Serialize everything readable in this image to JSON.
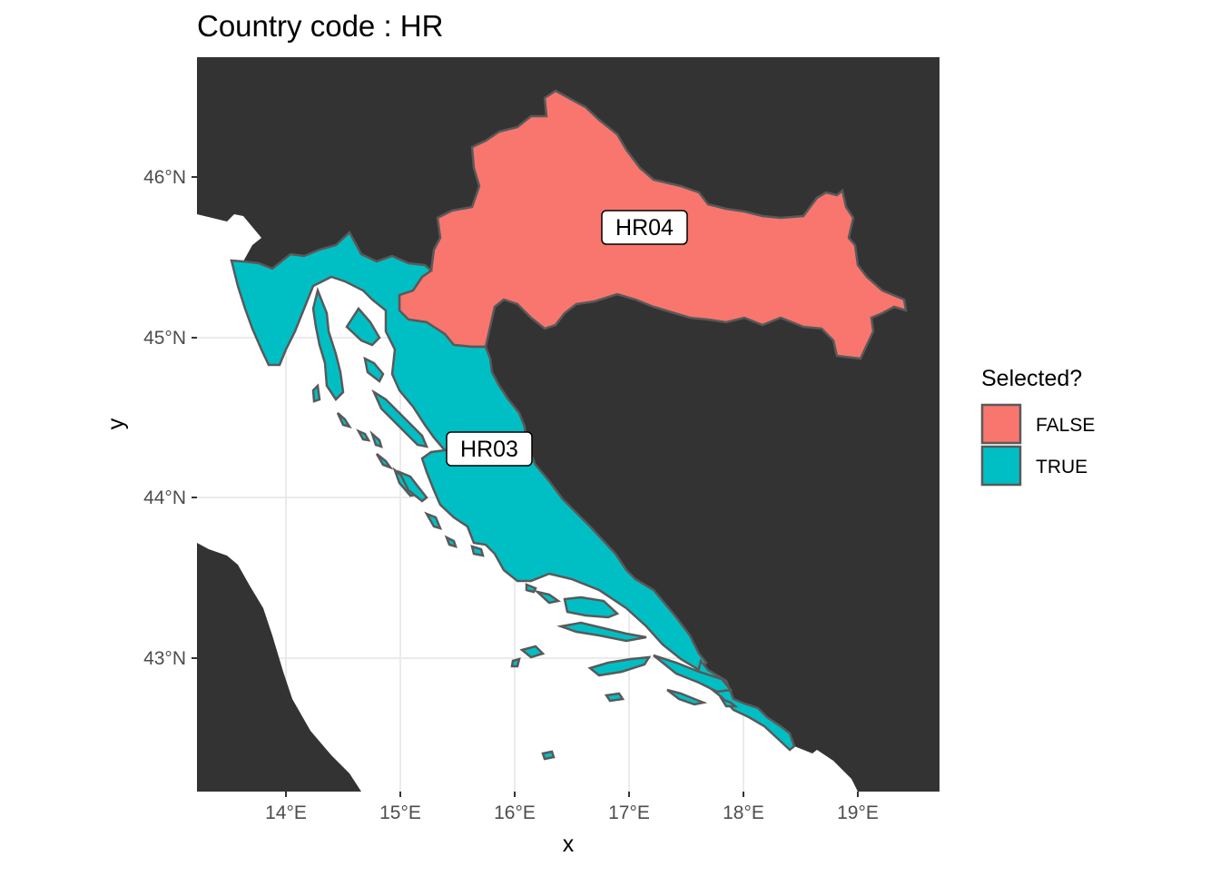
{
  "title": "Country code : HR",
  "axes": {
    "x_title": "x",
    "y_title": "y",
    "x_ticks": [
      "14°E",
      "15°E",
      "16°E",
      "17°E",
      "18°E",
      "19°E"
    ],
    "y_ticks": [
      "46°N",
      "45°N",
      "44°N",
      "43°N"
    ]
  },
  "legend": {
    "title": "Selected?",
    "items": [
      {
        "label": "FALSE",
        "color": "#F8766D"
      },
      {
        "label": "TRUE",
        "color": "#00BFC4"
      }
    ]
  },
  "regions": [
    {
      "code": "HR04",
      "selected": "FALSE"
    },
    {
      "code": "HR03",
      "selected": "TRUE"
    }
  ],
  "colors": {
    "land_other": "#333333",
    "sea": "#ffffff",
    "border": "#595959",
    "grid": "#ebebeb"
  }
}
